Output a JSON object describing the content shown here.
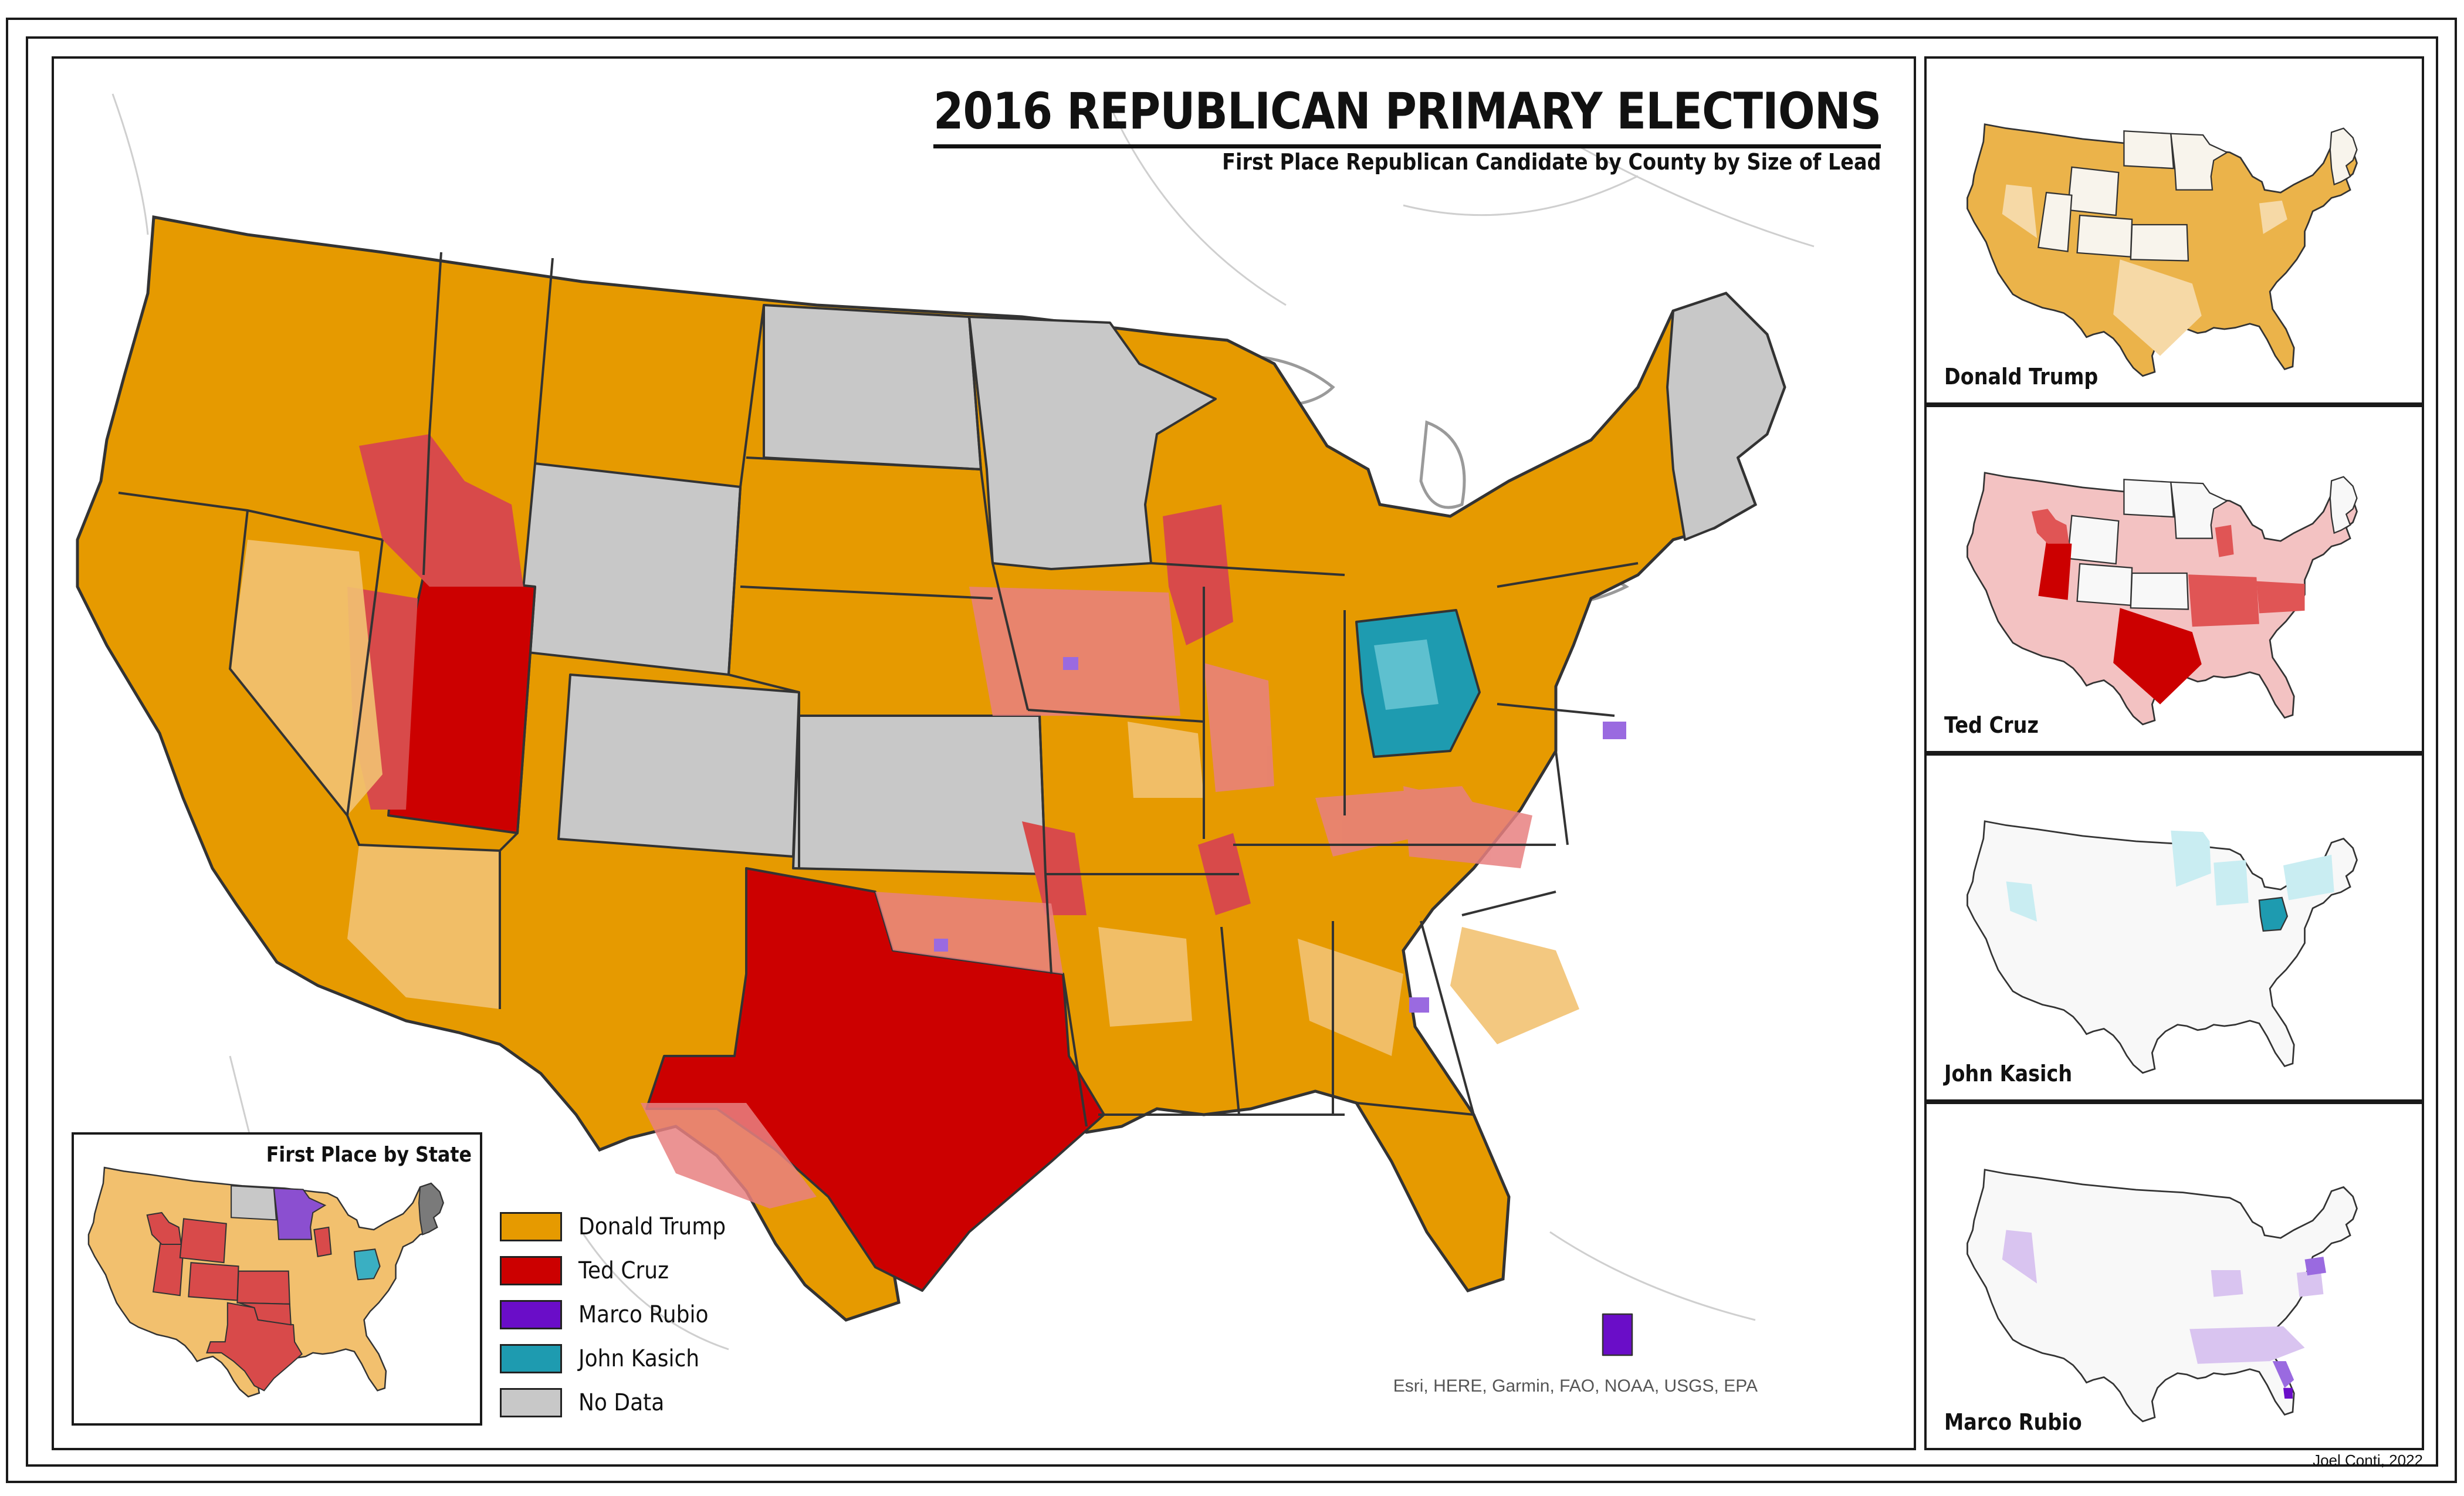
{
  "header": {
    "title": "2016 REPUBLICAN PRIMARY ELECTIONS",
    "subtitle": "First Place Republican Candidate by County by Size of Lead"
  },
  "attribution": "Esri, HERE, Garmin, FAO, NOAA, USGS, EPA",
  "credit": "Joel Conti, 2022",
  "state_inset": {
    "title": "First Place by State"
  },
  "legend": {
    "items": [
      {
        "label": "Donald Trump",
        "color": "#E69A00"
      },
      {
        "label": "Ted Cruz",
        "color": "#CC0000"
      },
      {
        "label": "Marco Rubio",
        "color": "#6A0DC8"
      },
      {
        "label": "John Kasich",
        "color": "#1E9BB0"
      },
      {
        "label": "No Data",
        "color": "#C8C8C8"
      }
    ]
  },
  "candidate_panels": [
    {
      "label": "Donald Trump",
      "color": "#E69A00"
    },
    {
      "label": "Ted Cruz",
      "color": "#CC0000"
    },
    {
      "label": "John Kasich",
      "color": "#1E9BB0"
    },
    {
      "label": "Marco Rubio",
      "color": "#6A0DC8"
    }
  ]
}
